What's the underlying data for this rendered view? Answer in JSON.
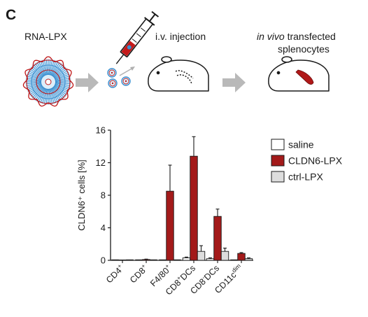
{
  "panel": {
    "letter": "C",
    "steps": [
      "RNA-LPX",
      "i.v. injection"
    ],
    "step3_italic": "in vivo",
    "step3_line1_rest": " transfected",
    "step3_line2": "splenocytes"
  },
  "colors": {
    "saline": "#ffffff",
    "cldn6": "#a31a1a",
    "ctrl": "#dddddd",
    "axis": "#1a1a1a",
    "lpx_blue": "#3a8fd0",
    "lpx_red": "#c01818"
  },
  "chart_data": {
    "type": "bar",
    "title": "",
    "xlabel": "",
    "ylabel": "CLDN6⁺ cells [%]",
    "ylim": [
      0,
      16
    ],
    "yticks": [
      "0",
      "4",
      "8",
      "12",
      "16"
    ],
    "categories": [
      {
        "base": "CD4",
        "sup": "+"
      },
      {
        "base": "CD8",
        "sup": "+"
      },
      {
        "base": "F4/80",
        "sup": "+"
      },
      {
        "base": "CD8",
        "sup": "+",
        "rest": "DCs"
      },
      {
        "base": "CD8",
        "sup": "-",
        "rest": "DCs"
      },
      {
        "base": "CD11c",
        "sup": "dim"
      }
    ],
    "series": [
      {
        "name": "saline",
        "values": [
          0.0,
          0.0,
          0.0,
          0.3,
          0.2,
          0.0
        ],
        "errors": [
          0,
          0,
          0,
          0.1,
          0.1,
          0
        ]
      },
      {
        "name": "CLDN6-LPX",
        "values": [
          0.05,
          0.1,
          8.5,
          12.8,
          5.4,
          0.85
        ],
        "errors": [
          0,
          0.05,
          3.2,
          2.4,
          0.9,
          0.1
        ]
      },
      {
        "name": "ctrl-LPX",
        "values": [
          0.0,
          0.0,
          0.0,
          1.1,
          1.1,
          0.2
        ],
        "errors": [
          0,
          0,
          0,
          0.7,
          0.4,
          0.1
        ]
      }
    ],
    "legend_position": "top-right"
  }
}
